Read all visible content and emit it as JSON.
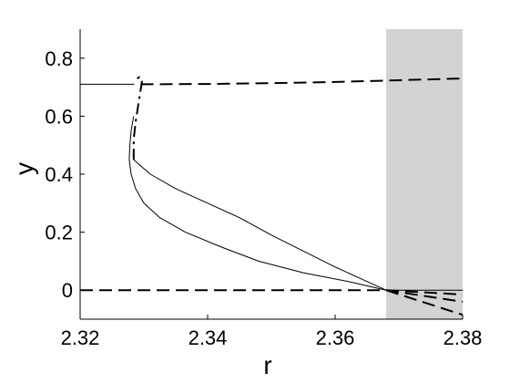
{
  "chart_data": {
    "type": "line",
    "xlabel": "r",
    "ylabel": "y",
    "xlim": [
      2.32,
      2.38
    ],
    "ylim": [
      -0.1,
      0.9
    ],
    "xticks": [
      "2.32",
      "2.34",
      "2.36",
      "2.38"
    ],
    "yticks": [
      "0",
      "0.2",
      "0.4",
      "0.6",
      "0.8"
    ],
    "grid": false,
    "shaded_region": {
      "x": [
        2.368,
        2.38
      ],
      "color": "#d3d3d3"
    },
    "series": [
      {
        "style": "solid",
        "points": [
          [
            2.32,
            0.71
          ],
          [
            2.3285,
            0.71
          ]
        ]
      },
      {
        "style": "dashed",
        "points": [
          [
            2.3295,
            0.71
          ],
          [
            2.34,
            0.711
          ],
          [
            2.35,
            0.714
          ],
          [
            2.36,
            0.718
          ],
          [
            2.37,
            0.724
          ],
          [
            2.38,
            0.73
          ]
        ]
      },
      {
        "style": "dashdot",
        "points": [
          [
            2.3284,
            0.45
          ],
          [
            2.3284,
            0.52
          ],
          [
            2.3287,
            0.58
          ],
          [
            2.3292,
            0.65
          ],
          [
            2.3297,
            0.72
          ],
          [
            2.3293,
            0.735
          ],
          [
            2.329,
            0.73
          ],
          [
            2.3286,
            0.72
          ]
        ]
      },
      {
        "style": "solid",
        "points": [
          [
            2.3284,
            0.45
          ],
          [
            2.331,
            0.4
          ],
          [
            2.335,
            0.35
          ],
          [
            2.34,
            0.3
          ],
          [
            2.345,
            0.25
          ],
          [
            2.35,
            0.19
          ],
          [
            2.355,
            0.135
          ],
          [
            2.36,
            0.08
          ],
          [
            2.365,
            0.03
          ],
          [
            2.368,
            0
          ]
        ]
      },
      {
        "style": "solid",
        "points": [
          [
            2.3284,
            0.6
          ],
          [
            2.328,
            0.55
          ],
          [
            2.3278,
            0.5
          ],
          [
            2.3277,
            0.45
          ],
          [
            2.328,
            0.4
          ],
          [
            2.3287,
            0.35
          ],
          [
            2.33,
            0.3
          ],
          [
            2.3325,
            0.25
          ],
          [
            2.3365,
            0.2
          ],
          [
            2.342,
            0.15
          ],
          [
            2.348,
            0.1
          ],
          [
            2.355,
            0.06
          ],
          [
            2.362,
            0.03
          ],
          [
            2.368,
            0
          ]
        ]
      },
      {
        "style": "dashed",
        "points": [
          [
            2.32,
            0
          ],
          [
            2.368,
            0
          ]
        ]
      },
      {
        "style": "solid",
        "points": [
          [
            2.368,
            0
          ],
          [
            2.38,
            0
          ]
        ]
      },
      {
        "style": "dashed",
        "points": [
          [
            2.368,
            0
          ],
          [
            2.38,
            -0.04
          ]
        ]
      },
      {
        "style": "dashed",
        "points": [
          [
            2.368,
            0
          ],
          [
            2.38,
            -0.085
          ]
        ]
      },
      {
        "style": "dashed",
        "points": [
          [
            2.368,
            0
          ],
          [
            2.38,
            -0.015
          ]
        ]
      }
    ]
  }
}
